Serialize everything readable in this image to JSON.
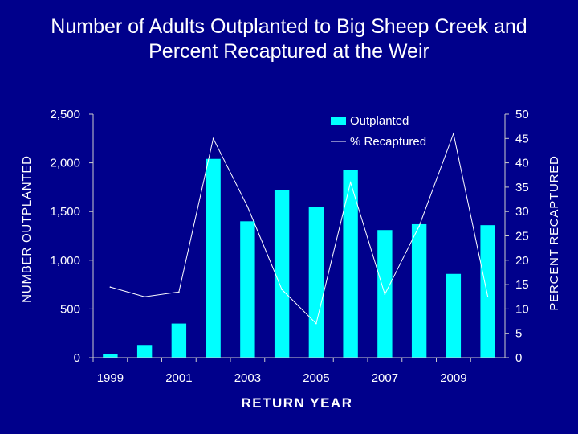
{
  "chart_data": {
    "type": "bar",
    "title_lines": [
      "Number of Adults Outplanted to Big Sheep Creek and",
      "Percent Recaptured at the Weir"
    ],
    "xlabel": "RETURN YEAR",
    "ylabel_left": "NUMBER OUTPLANTED",
    "ylabel_right": "PERCENT RECAPTURED",
    "x": [
      1999,
      2000,
      2001,
      2002,
      2003,
      2004,
      2005,
      2006,
      2007,
      2008,
      2009,
      2010
    ],
    "x_tick_labels": [
      "1999",
      "2001",
      "2003",
      "2005",
      "2007",
      "2009"
    ],
    "x_tick_years": [
      1999,
      2001,
      2003,
      2005,
      2007,
      2009
    ],
    "y_left_ticks": [
      "0",
      "500",
      "1,000",
      "1,500",
      "2,000",
      "2,500"
    ],
    "y_left_tick_values": [
      0,
      500,
      1000,
      1500,
      2000,
      2500
    ],
    "y_right_ticks": [
      "0",
      "5",
      "10",
      "15",
      "20",
      "25",
      "30",
      "35",
      "40",
      "45",
      "50"
    ],
    "y_right_tick_values": [
      0,
      5,
      10,
      15,
      20,
      25,
      30,
      35,
      40,
      45,
      50
    ],
    "ylim_left": [
      0,
      2500
    ],
    "ylim_right": [
      0,
      50
    ],
    "series": [
      {
        "name": "Outplanted",
        "kind": "bar",
        "axis": "left",
        "color": "#00ffff",
        "values": [
          40,
          130,
          350,
          2040,
          1400,
          1720,
          1550,
          1930,
          1310,
          1370,
          860,
          1360
        ]
      },
      {
        "name": "% Recaptured",
        "kind": "line",
        "axis": "right",
        "color": "#ffffff",
        "values": [
          14.5,
          12.5,
          13.5,
          45,
          31,
          14,
          7,
          36,
          13,
          27,
          46,
          12.5
        ]
      }
    ],
    "legend": {
      "position": "top-right",
      "entries": [
        "Outplanted",
        "% Recaptured"
      ]
    },
    "grid": false
  }
}
